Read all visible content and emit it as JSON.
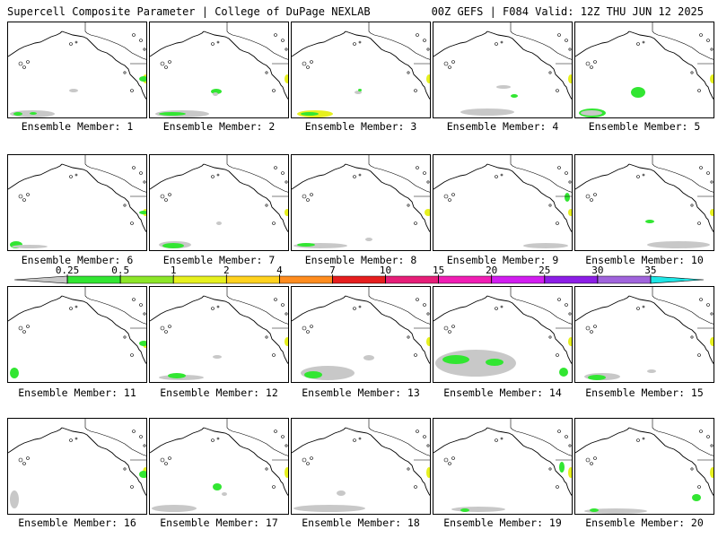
{
  "header": {
    "left": "Supercell Composite Parameter | College of DuPage NEXLAB",
    "right": "00Z GEFS | F084 Valid: 12Z THU JUN 12 2025"
  },
  "members": [
    {
      "label": "Ensemble Member: 1"
    },
    {
      "label": "Ensemble Member: 2"
    },
    {
      "label": "Ensemble Member: 3"
    },
    {
      "label": "Ensemble Member: 4"
    },
    {
      "label": "Ensemble Member: 5"
    },
    {
      "label": "Ensemble Member: 6"
    },
    {
      "label": "Ensemble Member: 7"
    },
    {
      "label": "Ensemble Member: 8"
    },
    {
      "label": "Ensemble Member: 9"
    },
    {
      "label": "Ensemble Member: 10"
    },
    {
      "label": "Ensemble Member: 11"
    },
    {
      "label": "Ensemble Member: 12"
    },
    {
      "label": "Ensemble Member: 13"
    },
    {
      "label": "Ensemble Member: 14"
    },
    {
      "label": "Ensemble Member: 15"
    },
    {
      "label": "Ensemble Member: 16"
    },
    {
      "label": "Ensemble Member: 17"
    },
    {
      "label": "Ensemble Member: 18"
    },
    {
      "label": "Ensemble Member: 19"
    },
    {
      "label": "Ensemble Member: 20"
    }
  ],
  "colorbar": {
    "ticks": [
      "0.25",
      "0.5",
      "1",
      "2",
      "4",
      "7",
      "10",
      "15",
      "20",
      "25",
      "30",
      "35"
    ],
    "colors": [
      "#c8c8c8",
      "#32e632",
      "#8ce628",
      "#e6f01e",
      "#ffd21e",
      "#ff8c1e",
      "#e61e1e",
      "#e61e78",
      "#f01eb4",
      "#d21ef0",
      "#8c1ee6",
      "#a064dc",
      "#1ee6e6"
    ]
  }
}
